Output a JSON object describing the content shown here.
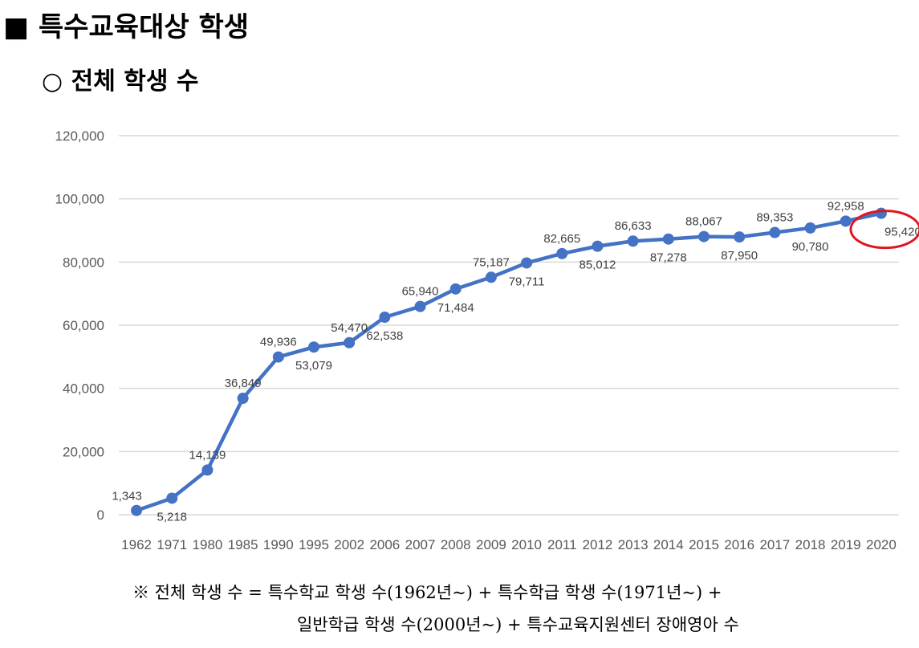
{
  "heading": "■ 특수교육대상 학생",
  "subheading": "○ 전체 학생 수",
  "footnote": {
    "line1": "※ 전체 학생 수 = 특수학교 학생 수(1962년~) + 특수학급 학생 수(1971년~) +",
    "line2": "일반학급 학생 수(2000년~) + 특수교육지원센터 장애영아 수"
  },
  "chart_data": {
    "type": "line",
    "title": "",
    "xlabel": "",
    "ylabel": "",
    "ylim": [
      0,
      120000
    ],
    "yticks": [
      "0",
      "20,000",
      "40,000",
      "60,000",
      "80,000",
      "100,000",
      "120,000"
    ],
    "grid": true,
    "line_color": "#4472C4",
    "highlight_color": "#E0141E",
    "highlighted_category": "2020",
    "categories": [
      "1962",
      "1971",
      "1980",
      "1985",
      "1990",
      "1995",
      "2002",
      "2006",
      "2007",
      "2008",
      "2009",
      "2010",
      "2011",
      "2012",
      "2013",
      "2014",
      "2015",
      "2016",
      "2017",
      "2018",
      "2019",
      "2020"
    ],
    "values": [
      1343,
      5218,
      14139,
      36849,
      49936,
      53079,
      54470,
      62538,
      65940,
      71484,
      75187,
      79711,
      82665,
      85012,
      86633,
      87278,
      88067,
      87950,
      89353,
      90780,
      92958,
      95420
    ],
    "labels": [
      "1,343",
      "5,218",
      "14,139",
      "36,849",
      "49,936",
      "53,079",
      "54,470",
      "62,538",
      "65,940",
      "71,484",
      "75,187",
      "79,711",
      "82,665",
      "85,012",
      "86,633",
      "87,278",
      "88,067",
      "87,950",
      "89,353",
      "90,780",
      "92,958",
      "95,420"
    ],
    "label_position": [
      "above",
      "below",
      "above",
      "above",
      "above",
      "below",
      "above",
      "below",
      "above",
      "below",
      "above",
      "below",
      "above",
      "below",
      "above",
      "below",
      "above",
      "below",
      "above",
      "below",
      "above",
      "below"
    ]
  }
}
